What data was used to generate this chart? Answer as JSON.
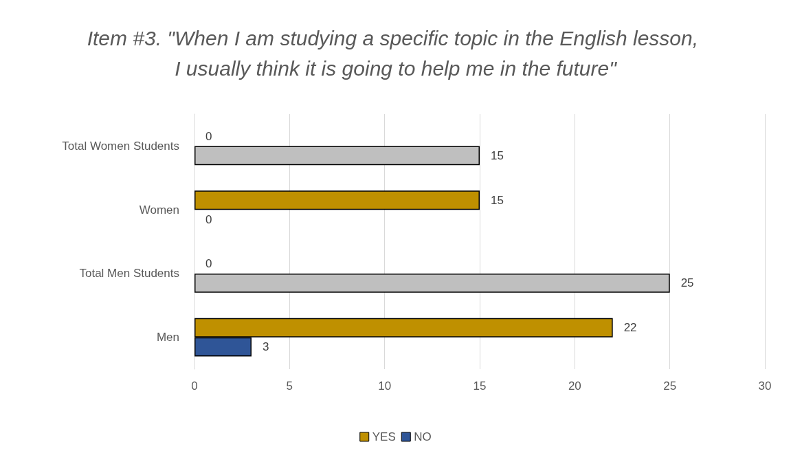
{
  "chart_data": {
    "type": "bar",
    "orientation": "horizontal",
    "title": "Item #3. \"When I am studying a specific topic in the English lesson, I usually think it is going to help me in the future\"",
    "categories": [
      "Total Women Students",
      "Women",
      "Total Men Students",
      "Men"
    ],
    "series": [
      {
        "name": "YES",
        "color": "#bf9000",
        "values": [
          0,
          15,
          0,
          22
        ]
      },
      {
        "name": "NO",
        "color": "#2f5597",
        "colors": [
          "#bfbfbf",
          "#2f5597",
          "#bfbfbf",
          "#2f5597"
        ],
        "values": [
          15,
          0,
          25,
          3
        ]
      }
    ],
    "xlim": [
      0,
      30
    ],
    "xticks": [
      0,
      5,
      10,
      15,
      20,
      25,
      30
    ],
    "grid": "x",
    "legend": "bottom",
    "data_labels": true
  }
}
